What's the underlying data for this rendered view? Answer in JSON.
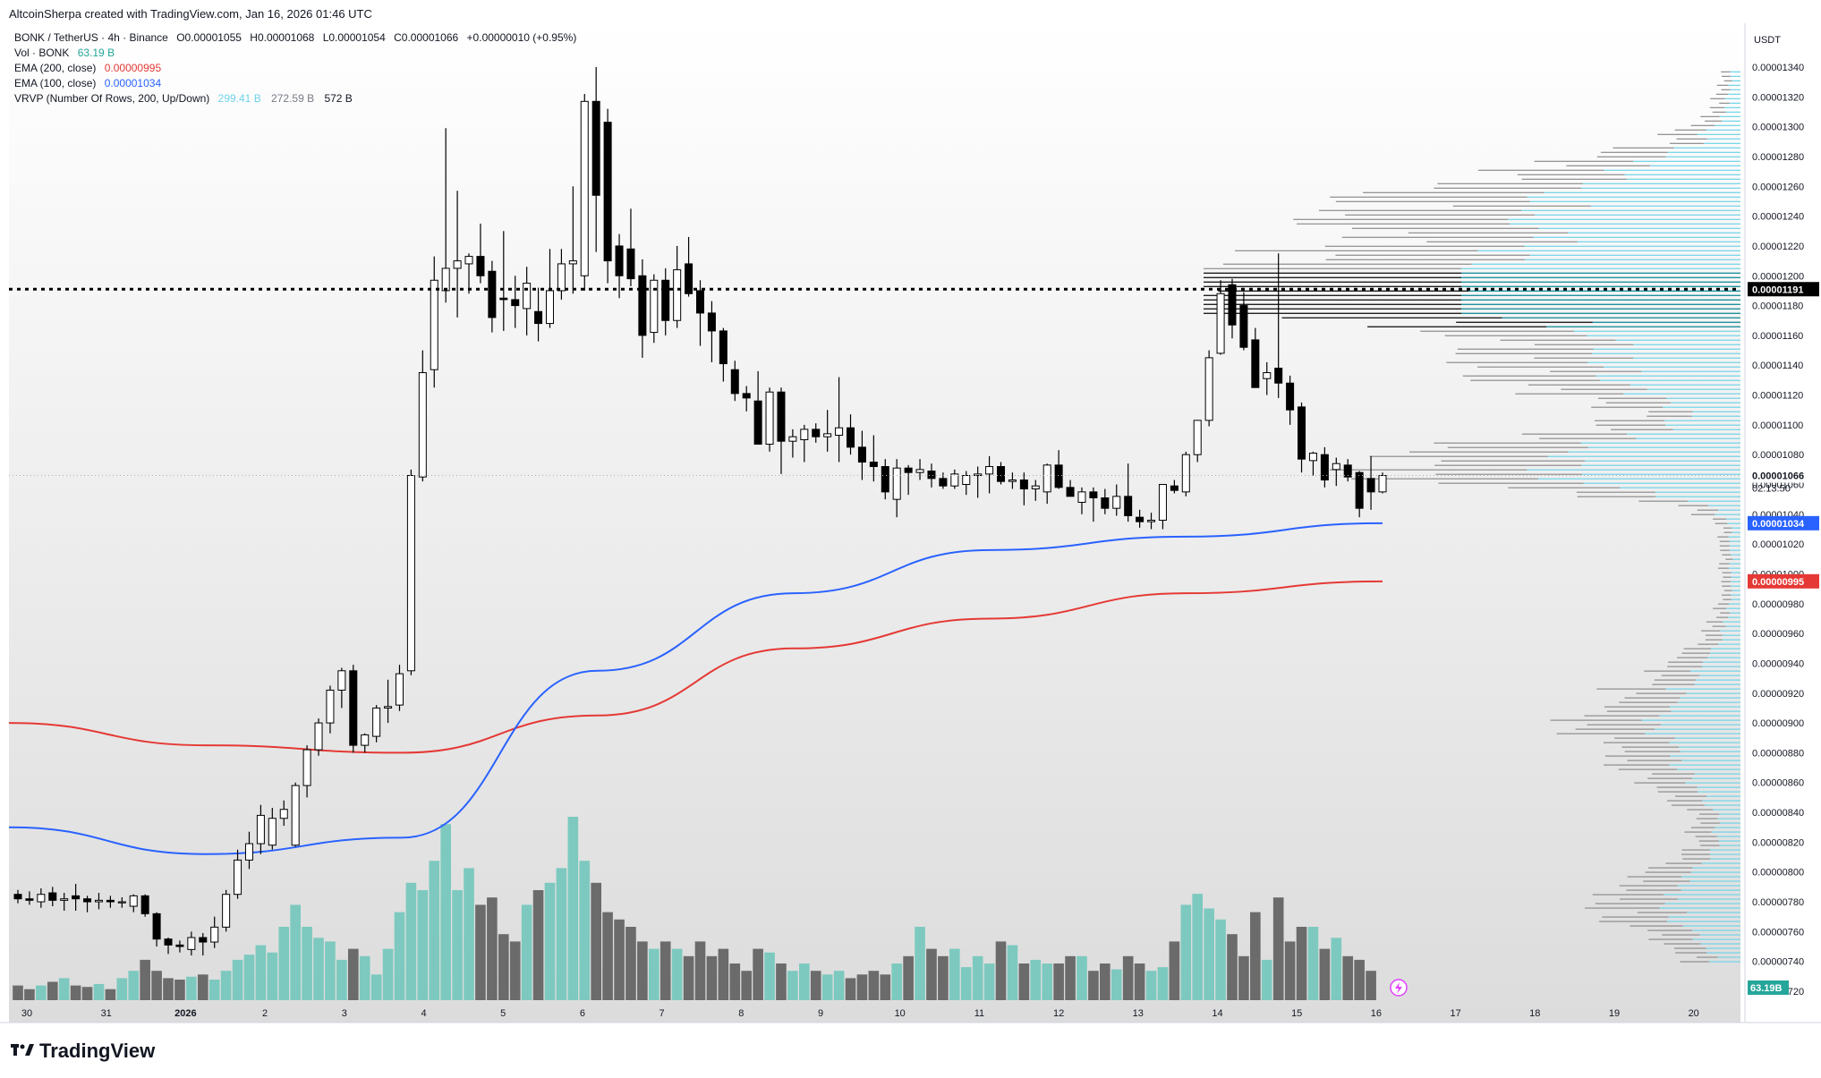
{
  "header": {
    "attribution": "AltcoinSherpa created with TradingView.com, Jan 16, 2026 01:46 UTC"
  },
  "legend": {
    "symbol_line": {
      "symbol": "BONK / TetherUS · 4h · Binance",
      "open": "O0.00001055",
      "high": "H0.00001068",
      "low": "L0.00001054",
      "close": "C0.00001066",
      "change": "+0.00000010 (+0.95%)"
    },
    "volume": {
      "label": "Vol · BONK",
      "value": "63.19 B"
    },
    "ema200": {
      "label": "EMA (200, close)",
      "value": "0.00000995"
    },
    "ema100": {
      "label": "EMA (100, close)",
      "value": "0.00001034"
    },
    "vrvp": {
      "label": "VRVP (Number Of Rows, 200, Up/Down)",
      "up": "299.41 B",
      "down": "272.59 B",
      "total": "572 B"
    }
  },
  "colors": {
    "up_body": "#ffffff",
    "down_body": "#000000",
    "candle_outline": "#000000",
    "volume_up": "#7dc9bf",
    "volume_down": "#6b6b6b",
    "ema200": "#e53935",
    "ema100": "#2962ff",
    "vrvp_up": "#6fd3e8",
    "vrvp_down": "#8c8c8c",
    "value_area": "#00838f"
  },
  "price_axis": {
    "unit": "USDT",
    "ticks": [
      "0.00001340",
      "0.00001320",
      "0.00001300",
      "0.00001280",
      "0.00001260",
      "0.00001240",
      "0.00001220",
      "0.00001200",
      "0.00001180",
      "0.00001160",
      "0.00001140",
      "0.00001120",
      "0.00001100",
      "0.00001080",
      "0.00001060",
      "0.00001040",
      "0.00001020",
      "0.00001000",
      "0.00000980",
      "0.00000960",
      "0.00000940",
      "0.00000920",
      "0.00000900",
      "0.00000880",
      "0.00000860",
      "0.00000840",
      "0.00000820",
      "0.00000800",
      "0.00000780",
      "0.00000760",
      "0.00000740",
      "0.00000720"
    ],
    "labels": {
      "poc": "0.00001191",
      "last_price": "0.00001066",
      "countdown": "02:13:50",
      "ema100": "0.00001034",
      "ema200": "0.00000995",
      "volume": "63.19B"
    }
  },
  "time_axis": {
    "labels": [
      "30",
      "31",
      "2026",
      "2",
      "3",
      "4",
      "5",
      "6",
      "7",
      "8",
      "9",
      "10",
      "11",
      "12",
      "13",
      "14",
      "15",
      "16",
      "17",
      "18",
      "19",
      "20"
    ]
  },
  "brand": {
    "name": "TradingView"
  },
  "chart_data": {
    "type": "candlestick",
    "timeframe": "4h",
    "candles_ohlc": [
      [
        7.85e-06,
        7.88e-06,
        7.79e-06,
        7.82e-06
      ],
      [
        7.82e-06,
        7.87e-06,
        7.78e-06,
        7.81e-06
      ],
      [
        7.8e-06,
        7.89e-06,
        7.76e-06,
        7.85e-06
      ],
      [
        7.86e-06,
        7.9e-06,
        7.77e-06,
        7.81e-06
      ],
      [
        7.81e-06,
        7.86e-06,
        7.74e-06,
        7.82e-06
      ],
      [
        7.84e-06,
        7.92e-06,
        7.74e-06,
        7.82e-06
      ],
      [
        7.82e-06,
        7.84e-06,
        7.73e-06,
        7.8e-06
      ],
      [
        7.8e-06,
        7.86e-06,
        7.75e-06,
        7.81e-06
      ],
      [
        7.81e-06,
        7.84e-06,
        7.76e-06,
        7.8e-06
      ],
      [
        7.8e-06,
        7.83e-06,
        7.76e-06,
        7.8e-06
      ],
      [
        7.77e-06,
        7.85e-06,
        7.73e-06,
        7.84e-06
      ],
      [
        7.84e-06,
        7.85e-06,
        7.7e-06,
        7.72e-06
      ],
      [
        7.72e-06,
        7.73e-06,
        7.5e-06,
        7.55e-06
      ],
      [
        7.55e-06,
        7.56e-06,
        7.45e-06,
        7.51e-06
      ],
      [
        7.51e-06,
        7.54e-06,
        7.46e-06,
        7.5e-06
      ],
      [
        7.48e-06,
        7.6e-06,
        7.44e-06,
        7.56e-06
      ],
      [
        7.56e-06,
        7.59e-06,
        7.44e-06,
        7.53e-06
      ],
      [
        7.53e-06,
        7.7e-06,
        7.49e-06,
        7.63e-06
      ],
      [
        7.63e-06,
        7.88e-06,
        7.6e-06,
        7.85e-06
      ],
      [
        7.85e-06,
        8.15e-06,
        7.82e-06,
        8.08e-06
      ],
      [
        8.08e-06,
        8.27e-06,
        8.02e-06,
        8.19e-06
      ],
      [
        8.19e-06,
        8.45e-06,
        8.12e-06,
        8.38e-06
      ],
      [
        8.18e-06,
        8.43e-06,
        8.15e-06,
        8.36e-06
      ],
      [
        8.36e-06,
        8.48e-06,
        8.31e-06,
        8.42e-06
      ],
      [
        8.18e-06,
        8.6e-06,
        8.17e-06,
        8.58e-06
      ],
      [
        8.58e-06,
        8.85e-06,
        8.5e-06,
        8.82e-06
      ],
      [
        8.82e-06,
        9.03e-06,
        8.78e-06,
        9e-06
      ],
      [
        9e-06,
        9.25e-06,
        8.93e-06,
        9.22e-06
      ],
      [
        9.22e-06,
        9.37e-06,
        9.1e-06,
        9.35e-06
      ],
      [
        9.35e-06,
        9.39e-06,
        8.8e-06,
        8.85e-06
      ],
      [
        8.85e-06,
        8.93e-06,
        8.8e-06,
        8.92e-06
      ],
      [
        8.91e-06,
        9.12e-06,
        8.87e-06,
        9.1e-06
      ],
      [
        9.1e-06,
        9.29e-06,
        9e-06,
        9.11e-06
      ],
      [
        9.12e-06,
        9.39e-06,
        9.08e-06,
        9.33e-06
      ],
      [
        9.35e-06,
        1.07e-05,
        9.32e-06,
        1.066e-05
      ],
      [
        1.065e-05,
        1.15e-05,
        1.062e-05,
        1.135e-05
      ],
      [
        1.137e-05,
        1.213e-05,
        1.125e-05,
        1.197e-05
      ],
      [
        1.19e-05,
        1.299e-05,
        1.182e-05,
        1.205e-05
      ],
      [
        1.205e-05,
        1.257e-05,
        1.172e-05,
        1.21e-05
      ],
      [
        1.208e-05,
        1.215e-05,
        1.188e-05,
        1.213e-05
      ],
      [
        1.213e-05,
        1.235e-05,
        1.195e-05,
        1.2e-05
      ],
      [
        1.203e-05,
        1.21e-05,
        1.162e-05,
        1.172e-05
      ],
      [
        1.185e-05,
        1.23e-05,
        1.163e-05,
        1.184e-05
      ],
      [
        1.184e-05,
        1.2e-05,
        1.165e-05,
        1.18e-05
      ],
      [
        1.178e-05,
        1.206e-05,
        1.16e-05,
        1.195e-05
      ],
      [
        1.176e-05,
        1.192e-05,
        1.156e-05,
        1.168e-05
      ],
      [
        1.168e-05,
        1.218e-05,
        1.165e-05,
        1.19e-05
      ],
      [
        1.19e-05,
        1.218e-05,
        1.184e-05,
        1.208e-05
      ],
      [
        1.208e-05,
        1.26e-05,
        1.188e-05,
        1.21e-05
      ],
      [
        1.2e-05,
        1.322e-05,
        1.19e-05,
        1.317e-05
      ],
      [
        1.317e-05,
        1.34e-05,
        1.216e-05,
        1.254e-05
      ],
      [
        1.303e-05,
        1.312e-05,
        1.195e-05,
        1.21e-05
      ],
      [
        1.22e-05,
        1.228e-05,
        1.185e-05,
        1.2e-05
      ],
      [
        1.218e-05,
        1.245e-05,
        1.193e-05,
        1.198e-05
      ],
      [
        1.2e-05,
        1.211e-05,
        1.145e-05,
        1.16e-05
      ],
      [
        1.162e-05,
        1.201e-05,
        1.155e-05,
        1.197e-05
      ],
      [
        1.197e-05,
        1.205e-05,
        1.16e-05,
        1.17e-05
      ],
      [
        1.17e-05,
        1.22e-05,
        1.165e-05,
        1.204e-05
      ],
      [
        1.208e-05,
        1.226e-05,
        1.186e-05,
        1.188e-05
      ],
      [
        1.19e-05,
        1.197e-05,
        1.153e-05,
        1.175e-05
      ],
      [
        1.175e-05,
        1.183e-05,
        1.142e-05,
        1.163e-05
      ],
      [
        1.163e-05,
        1.165e-05,
        1.129e-05,
        1.141e-05
      ],
      [
        1.137e-05,
        1.143e-05,
        1.116e-05,
        1.121e-05
      ],
      [
        1.121e-05,
        1.126e-05,
        1.109e-05,
        1.118e-05
      ],
      [
        1.116e-05,
        1.136e-05,
        1.09e-05,
        1.087e-05
      ],
      [
        1.087e-05,
        1.125e-05,
        1.082e-05,
        1.122e-05
      ],
      [
        1.122e-05,
        1.125e-05,
        1.067e-05,
        1.089e-05
      ],
      [
        1.089e-05,
        1.097e-05,
        1.078e-05,
        1.092e-05
      ],
      [
        1.09e-05,
        1.1e-05,
        1.075e-05,
        1.097e-05
      ],
      [
        1.097e-05,
        1.101e-05,
        1.088e-05,
        1.092e-05
      ],
      [
        1.092e-05,
        1.11e-05,
        1.082e-05,
        1.094e-05
      ],
      [
        1.093e-05,
        1.132e-05,
        1.075e-05,
        1.098e-05
      ],
      [
        1.098e-05,
        1.107e-05,
        1.08e-05,
        1.085e-05
      ],
      [
        1.085e-05,
        1.096e-05,
        1.063e-05,
        1.075e-05
      ],
      [
        1.075e-05,
        1.093e-05,
        1.062e-05,
        1.072e-05
      ],
      [
        1.072e-05,
        1.077e-05,
        1.05e-05,
        1.055e-05
      ],
      [
        1.05e-05,
        1.077e-05,
        1.038e-05,
        1.071e-05
      ],
      [
        1.071e-05,
        1.073e-05,
        1.053e-05,
        1.068e-05
      ],
      [
        1.068e-05,
        1.077e-05,
        1.063e-05,
        1.07e-05
      ],
      [
        1.069e-05,
        1.074e-05,
        1.058e-05,
        1.064e-05
      ],
      [
        1.064e-05,
        1.068e-05,
        1.057e-05,
        1.059e-05
      ],
      [
        1.059e-05,
        1.07e-05,
        1.057e-05,
        1.067e-05
      ],
      [
        1.06e-05,
        1.069e-05,
        1.053e-05,
        1.066e-05
      ],
      [
        1.066e-05,
        1.072e-05,
        1.051e-05,
        1.067e-05
      ],
      [
        1.067e-05,
        1.079e-05,
        1.054e-05,
        1.072e-05
      ],
      [
        1.072e-05,
        1.075e-05,
        1.06e-05,
        1.062e-05
      ],
      [
        1.062e-05,
        1.068e-05,
        1.057e-05,
        1.063e-05
      ],
      [
        1.063e-05,
        1.068e-05,
        1.046e-05,
        1.057e-05
      ],
      [
        1.057e-05,
        1.063e-05,
        1.049e-05,
        1.059e-05
      ],
      [
        1.055e-05,
        1.074e-05,
        1.047e-05,
        1.073e-05
      ],
      [
        1.073e-05,
        1.083e-05,
        1.057e-05,
        1.058e-05
      ],
      [
        1.058e-05,
        1.063e-05,
        1.053e-05,
        1.052e-05
      ],
      [
        1.048e-05,
        1.058e-05,
        1.04e-05,
        1.055e-05
      ],
      [
        1.055e-05,
        1.058e-05,
        1.035e-05,
        1.051e-05
      ],
      [
        1.051e-05,
        1.057e-05,
        1.04e-05,
        1.044e-05
      ],
      [
        1.044e-05,
        1.06e-05,
        1.039e-05,
        1.052e-05
      ],
      [
        1.052e-05,
        1.074e-05,
        1.035e-05,
        1.039e-05
      ],
      [
        1.038e-05,
        1.043e-05,
        1.031e-05,
        1.035e-05
      ],
      [
        1.035e-05,
        1.041e-05,
        1.03e-05,
        1.036e-05
      ],
      [
        1.036e-05,
        1.06e-05,
        1.03e-05,
        1.06e-05
      ],
      [
        1.059e-05,
        1.063e-05,
        1.054e-05,
        1.056e-05
      ],
      [
        1.055e-05,
        1.082e-05,
        1.052e-05,
        1.08e-05
      ],
      [
        1.08e-05,
        1.102e-05,
        1.075e-05,
        1.103e-05
      ],
      [
        1.103e-05,
        1.15e-05,
        1.099e-05,
        1.145e-05
      ],
      [
        1.148e-05,
        1.197e-05,
        1.147e-05,
        1.188e-05
      ],
      [
        1.194e-05,
        1.198e-05,
        1.158e-05,
        1.167e-05
      ],
      [
        1.18e-05,
        1.189e-05,
        1.15e-05,
        1.152e-05
      ],
      [
        1.157e-05,
        1.165e-05,
        1.125e-05,
        1.125e-05
      ],
      [
        1.131e-05,
        1.142e-05,
        1.12e-05,
        1.135e-05
      ],
      [
        1.138e-05,
        1.215e-05,
        1.118e-05,
        1.128e-05
      ],
      [
        1.128e-05,
        1.133e-05,
        1.1e-05,
        1.11e-05
      ],
      [
        1.112e-05,
        1.115e-05,
        1.068e-05,
        1.077e-05
      ],
      [
        1.076e-05,
        1.082e-05,
        1.066e-05,
        1.081e-05
      ],
      [
        1.08e-05,
        1.085e-05,
        1.058e-05,
        1.063e-05
      ],
      [
        1.07e-05,
        1.078e-05,
        1.059e-05,
        1.074e-05
      ],
      [
        1.073e-05,
        1.077e-05,
        1.062e-05,
        1.065e-05
      ],
      [
        1.068e-05,
        1.069e-05,
        1.038e-05,
        1.044e-05
      ],
      [
        1.064e-05,
        1.079e-05,
        1.043e-05,
        1.055e-05
      ],
      [
        1.055e-05,
        1.068e-05,
        1.054e-05,
        1.066e-05
      ]
    ],
    "volume": [
      2,
      1.5,
      2,
      2.5,
      3,
      2,
      1.8,
      2.2,
      1.5,
      3,
      4,
      5.5,
      4,
      3,
      2.8,
      3.2,
      3.5,
      2.8,
      4,
      5.5,
      6.2,
      7.5,
      6.5,
      10,
      13,
      10,
      8.5,
      8,
      5.5,
      7,
      6,
      3.5,
      7,
      12,
      16,
      15,
      19,
      24,
      15,
      18,
      13,
      14,
      9,
      8,
      13,
      15,
      16,
      18,
      25,
      19,
      16,
      12,
      11,
      10,
      8,
      7,
      8,
      7,
      6,
      8,
      6,
      7,
      5,
      4,
      7,
      6.5,
      5,
      4,
      5,
      4,
      3.5,
      4,
      3,
      3.5,
      4,
      3.5,
      5,
      6,
      10,
      7,
      6,
      7,
      4.5,
      6,
      5,
      8,
      7.5,
      5,
      5.5,
      5,
      5,
      6,
      6,
      4,
      5,
      4.2,
      6,
      5,
      4,
      4.5,
      8,
      13,
      14.5,
      12.5,
      11,
      9,
      6,
      12,
      5.5,
      14,
      8,
      10,
      10,
      7,
      8.5,
      6,
      5.5,
      4
    ],
    "ema200": [
      9e-06,
      8.85e-06,
      8.8e-06,
      9.05e-06,
      9.5e-06,
      9.7e-06,
      9.87e-06,
      9.95e-06
    ],
    "ema100": [
      8.3e-06,
      8.12e-06,
      8.23e-06,
      9.35e-06,
      9.87e-06,
      1.016e-05,
      1.025e-05,
      1.034e-05
    ],
    "poc_price": 1.191e-05,
    "last_price": 1.066e-05,
    "volume_profile": {
      "price_range": [
        7.4e-06,
        1.34e-05
      ],
      "up_b": 299.41,
      "down_b": 272.59,
      "total_b": 572
    },
    "ylim": [
      7.2e-06,
      1.35e-05
    ]
  }
}
